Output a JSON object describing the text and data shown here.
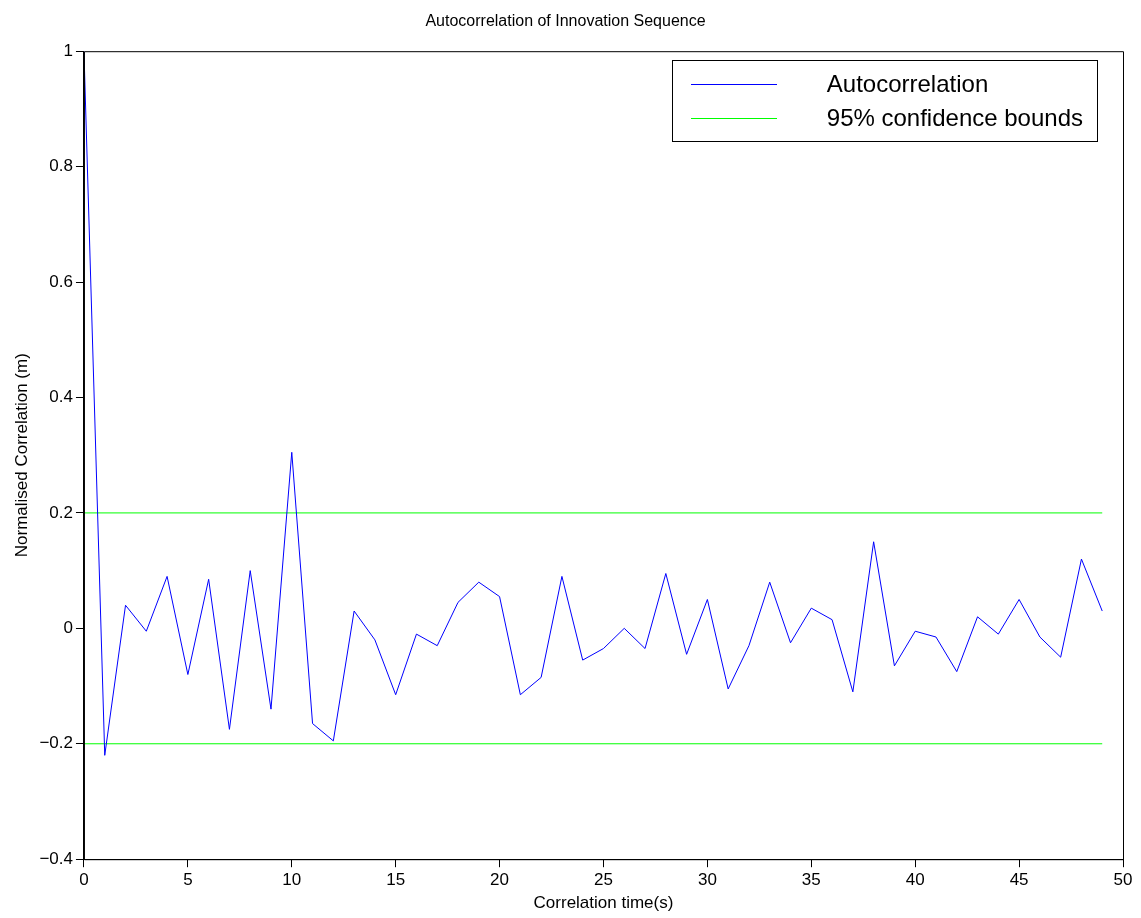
{
  "chart_data": {
    "type": "line",
    "title": "Autocorrelation of Innovation Sequence",
    "xlabel": "Correlation time(s)",
    "ylabel": "Normalised Correlation (m)",
    "xlim": [
      0,
      50
    ],
    "xticks": [
      0,
      5,
      10,
      15,
      20,
      25,
      30,
      35,
      40,
      45,
      50
    ],
    "ylim": [
      -0.4,
      1
    ],
    "yticks": [
      {
        "value": -0.4,
        "label": "−0.4"
      },
      {
        "value": -0.2,
        "label": "−0.2"
      },
      0,
      0.2,
      0.4,
      0.6,
      0.8,
      1
    ],
    "grid": false,
    "legend": "top right",
    "marker": "none",
    "line_style": "solid",
    "series": [
      {
        "name": "Autocorrelation",
        "color": "#0000ff",
        "x": [
          0,
          1,
          2,
          3,
          4,
          5,
          6,
          7,
          8,
          9,
          10,
          11,
          12,
          13,
          14,
          15,
          16,
          17,
          18,
          19,
          20,
          21,
          22,
          23,
          24,
          25,
          26,
          27,
          28,
          29,
          30,
          31,
          32,
          33,
          34,
          35,
          36,
          37,
          38,
          39,
          40,
          41,
          42,
          43,
          44,
          45,
          46,
          47,
          48,
          49
        ],
        "values": [
          1.0,
          -0.22,
          0.04,
          -0.005,
          0.09,
          -0.08,
          0.085,
          -0.175,
          0.1,
          -0.14,
          0.305,
          -0.165,
          -0.195,
          0.03,
          -0.02,
          -0.115,
          -0.01,
          -0.03,
          0.045,
          0.08,
          0.055,
          -0.115,
          -0.085,
          0.09,
          -0.055,
          -0.035,
          0.0,
          -0.035,
          0.095,
          -0.045,
          0.05,
          -0.105,
          -0.03,
          0.08,
          -0.025,
          0.035,
          0.015,
          -0.11,
          0.15,
          -0.065,
          -0.005,
          -0.015,
          -0.075,
          0.02,
          -0.01,
          0.05,
          -0.015,
          -0.05,
          0.12,
          0.03
        ]
      },
      {
        "name": "95% confidence bounds",
        "color": "#00ff00",
        "x": [
          0,
          49
        ],
        "values": [
          0.2,
          0.2
        ]
      },
      {
        "color": "#00ff00",
        "x": [
          0,
          49
        ],
        "values": [
          -0.2,
          -0.2
        ]
      }
    ]
  }
}
